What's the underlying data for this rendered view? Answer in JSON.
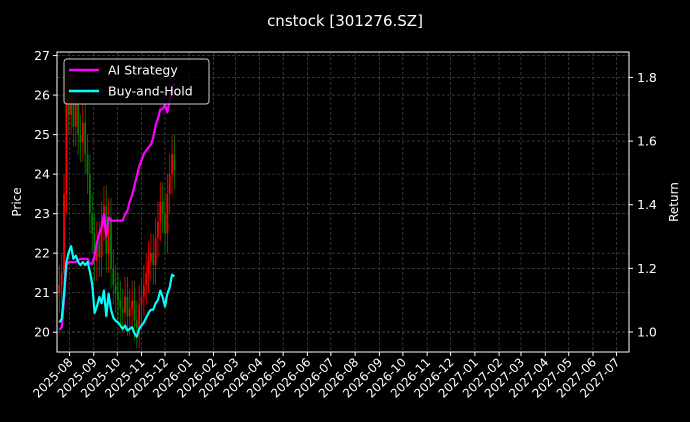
{
  "chart_data": {
    "type": "line",
    "title": "cnstock [301276.SZ]",
    "ylabel": "Price",
    "y2label": "Return",
    "xlim": [
      "2025-07-16",
      "2027-07-17"
    ],
    "ylim": [
      19.5,
      27.09
    ],
    "y2lim": [
      0.937,
      1.88
    ],
    "yticks": [
      20,
      21,
      22,
      23,
      24,
      25,
      26,
      27
    ],
    "y2ticks": [
      "1.0",
      "1.2",
      "1.4",
      "1.6",
      "1.8"
    ],
    "xticks": [
      "2025-08",
      "2025-09",
      "2025-10",
      "2025-11",
      "2025-12",
      "2026-01",
      "2026-02",
      "2026-03",
      "2026-04",
      "2026-05",
      "2026-06",
      "2026-07",
      "2026-08",
      "2026-09",
      "2026-10",
      "2026-11",
      "2026-12",
      "2027-01",
      "2027-02",
      "2027-03",
      "2027-04",
      "2027-05",
      "2027-06",
      "2027-07"
    ],
    "grid": true,
    "legend_placement": "top-left",
    "colors": {
      "background": "#000000",
      "up": "#ff0000",
      "down": "#008000",
      "ai": "#ff00ff",
      "bh": "#00ffff",
      "grid": "#555555"
    },
    "dates": [
      "2025-07-19",
      "2025-07-22",
      "2025-07-25",
      "2025-07-28",
      "2025-07-31",
      "2025-08-03",
      "2025-08-06",
      "2025-08-09",
      "2025-08-12",
      "2025-08-15",
      "2025-08-18",
      "2025-08-21",
      "2025-08-24",
      "2025-08-27",
      "2025-08-30",
      "2025-09-02",
      "2025-09-05",
      "2025-09-08",
      "2025-09-11",
      "2025-09-14",
      "2025-09-17",
      "2025-09-20",
      "2025-09-23",
      "2025-09-26",
      "2025-09-29",
      "2025-10-02",
      "2025-10-05",
      "2025-10-08",
      "2025-10-11",
      "2025-10-14",
      "2025-10-17",
      "2025-10-20",
      "2025-10-23",
      "2025-10-26",
      "2025-10-29",
      "2025-11-01",
      "2025-11-04",
      "2025-11-07",
      "2025-11-10",
      "2025-11-13",
      "2025-11-16",
      "2025-11-19",
      "2025-11-22",
      "2025-11-25",
      "2025-11-28",
      "2025-12-01",
      "2025-12-04",
      "2025-12-07",
      "2025-12-10",
      "2025-12-13"
    ],
    "ohlc": [
      [
        21.0,
        21.7,
        20.5,
        21.2
      ],
      [
        21.2,
        22.0,
        20.7,
        21.5
      ],
      [
        21.5,
        24.0,
        21.0,
        23.5
      ],
      [
        23.5,
        26.5,
        23.0,
        26.0
      ],
      [
        26.0,
        26.6,
        25.0,
        25.5
      ],
      [
        25.5,
        26.6,
        25.0,
        26.0
      ],
      [
        26.0,
        26.5,
        24.7,
        25.2
      ],
      [
        25.2,
        26.3,
        24.7,
        25.8
      ],
      [
        25.8,
        26.3,
        24.5,
        25.0
      ],
      [
        25.0,
        25.5,
        24.3,
        24.8
      ],
      [
        24.8,
        25.8,
        24.3,
        25.3
      ],
      [
        25.3,
        25.8,
        24.0,
        24.5
      ],
      [
        24.5,
        25.0,
        23.5,
        24.0
      ],
      [
        24.0,
        24.5,
        22.5,
        23.0
      ],
      [
        23.0,
        23.5,
        22.0,
        22.5
      ],
      [
        22.5,
        23.0,
        21.3,
        21.8
      ],
      [
        21.8,
        22.8,
        21.3,
        22.3
      ],
      [
        22.3,
        22.8,
        21.4,
        21.9
      ],
      [
        21.9,
        23.3,
        21.4,
        22.8
      ],
      [
        22.8,
        23.7,
        22.3,
        23.2
      ],
      [
        23.2,
        23.7,
        21.5,
        22.0
      ],
      [
        22.0,
        23.4,
        21.5,
        22.9
      ],
      [
        22.9,
        23.4,
        21.1,
        21.6
      ],
      [
        21.6,
        22.1,
        20.7,
        21.2
      ],
      [
        21.2,
        21.7,
        20.5,
        21.0
      ],
      [
        21.0,
        21.5,
        20.3,
        20.8
      ],
      [
        20.8,
        21.3,
        20.1,
        20.6
      ],
      [
        20.6,
        21.1,
        20.0,
        20.5
      ],
      [
        20.5,
        21.4,
        20.0,
        20.9
      ],
      [
        20.9,
        21.4,
        19.9,
        20.4
      ],
      [
        20.4,
        21.1,
        19.9,
        20.6
      ],
      [
        20.6,
        21.3,
        20.1,
        20.8
      ],
      [
        20.8,
        21.3,
        19.8,
        20.3
      ],
      [
        20.3,
        20.8,
        19.6,
        20.1
      ],
      [
        20.1,
        21.2,
        19.6,
        20.7
      ],
      [
        20.7,
        21.4,
        20.2,
        20.9
      ],
      [
        20.9,
        21.7,
        20.4,
        21.2
      ],
      [
        21.2,
        22.0,
        20.7,
        21.5
      ],
      [
        21.5,
        22.3,
        21.0,
        21.8
      ],
      [
        21.8,
        22.5,
        21.3,
        22.0
      ],
      [
        22.0,
        22.5,
        21.2,
        21.7
      ],
      [
        21.7,
        22.9,
        21.2,
        22.4
      ],
      [
        22.4,
        23.3,
        21.9,
        22.8
      ],
      [
        22.8,
        23.8,
        22.3,
        23.3
      ],
      [
        23.3,
        23.8,
        22.5,
        23.0
      ],
      [
        23.0,
        23.5,
        22.0,
        22.5
      ],
      [
        22.5,
        24.0,
        22.0,
        23.5
      ],
      [
        23.5,
        24.5,
        23.0,
        24.0
      ],
      [
        24.0,
        25.0,
        23.5,
        24.5
      ],
      [
        24.5,
        25.0,
        23.6,
        24.1
      ]
    ],
    "series": [
      {
        "name": "AI Strategy",
        "axis": "right",
        "values": [
          1.007,
          1.015,
          1.1,
          1.21,
          1.22,
          1.22,
          1.22,
          1.22,
          1.225,
          1.23,
          1.23,
          1.23,
          1.23,
          1.215,
          1.215,
          1.24,
          1.28,
          1.31,
          1.33,
          1.37,
          1.3,
          1.36,
          1.35,
          1.35,
          1.35,
          1.35,
          1.35,
          1.35,
          1.37,
          1.38,
          1.41,
          1.43,
          1.46,
          1.49,
          1.52,
          1.54,
          1.56,
          1.57,
          1.58,
          1.59,
          1.61,
          1.65,
          1.67,
          1.7,
          1.7,
          1.715,
          1.69,
          1.73,
          1.77,
          1.78
        ]
      },
      {
        "name": "Buy-and-Hold",
        "axis": "right",
        "values": [
          1.03,
          1.04,
          1.12,
          1.22,
          1.25,
          1.27,
          1.23,
          1.24,
          1.22,
          1.21,
          1.22,
          1.21,
          1.22,
          1.19,
          1.15,
          1.06,
          1.08,
          1.11,
          1.09,
          1.13,
          1.05,
          1.12,
          1.07,
          1.045,
          1.035,
          1.03,
          1.02,
          1.01,
          1.02,
          1.005,
          1.01,
          1.015,
          0.995,
          0.985,
          1.01,
          1.02,
          1.03,
          1.045,
          1.06,
          1.07,
          1.07,
          1.09,
          1.1,
          1.13,
          1.11,
          1.08,
          1.12,
          1.14,
          1.18,
          1.175
        ]
      }
    ]
  }
}
